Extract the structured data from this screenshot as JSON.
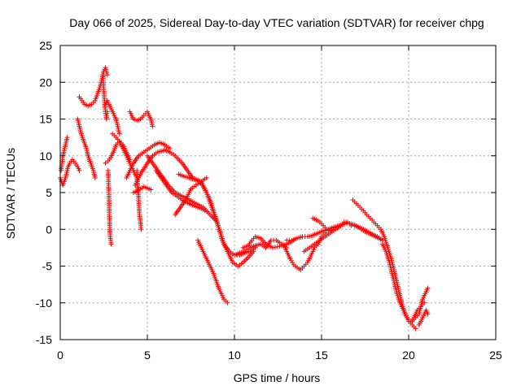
{
  "chart_data": {
    "type": "scatter",
    "title": "Day 066 of 2025, Sidereal Day-to-day VTEC variation (SDTVAR) for receiver chpg",
    "xlabel": "GPS time / hours",
    "ylabel": "SDTVAR / TECUs",
    "xlim": [
      0,
      25
    ],
    "ylim": [
      -15,
      25
    ],
    "xticks": [
      0,
      5,
      10,
      15,
      20,
      25
    ],
    "yticks": [
      -15,
      -10,
      -5,
      0,
      5,
      10,
      15,
      20,
      25
    ],
    "grid": true,
    "marker": "+",
    "color": "#ff0000",
    "series": [
      {
        "name": "s1",
        "x": [
          0.0,
          0.15,
          0.3,
          0.45,
          0.55,
          0.7,
          0.85,
          1.0,
          1.1
        ],
        "y": [
          7,
          6,
          7,
          8.5,
          9,
          9.5,
          9,
          8.5,
          8
        ]
      },
      {
        "name": "s2",
        "x": [
          0.05,
          0.1,
          0.15,
          0.2,
          0.25,
          0.3,
          0.35,
          0.4
        ],
        "y": [
          8,
          9,
          10,
          10.5,
          11,
          11.5,
          12,
          12.5
        ]
      },
      {
        "name": "s3",
        "x": [
          1.0,
          1.1,
          1.2,
          1.35,
          1.5,
          1.6,
          1.75,
          1.9,
          2.0
        ],
        "y": [
          15,
          14,
          13,
          12,
          11,
          10,
          9,
          8,
          7
        ]
      },
      {
        "name": "s4",
        "x": [
          1.1,
          1.25,
          1.4,
          1.6,
          1.8,
          2.0,
          2.15,
          2.3,
          2.4,
          2.5,
          2.6,
          2.7
        ],
        "y": [
          18,
          17.5,
          17,
          16.8,
          17,
          17.5,
          18.5,
          19.5,
          20.5,
          21.5,
          22,
          21
        ]
      },
      {
        "name": "s5",
        "x": [
          2.45,
          2.5,
          2.55,
          2.6,
          2.65,
          2.7
        ],
        "y": [
          21,
          19,
          17,
          16,
          15,
          16
        ]
      },
      {
        "name": "s6",
        "x": [
          2.6,
          2.7,
          2.8,
          2.9,
          3.0,
          3.1,
          3.2,
          3.3,
          3.4
        ],
        "y": [
          17,
          17.5,
          17,
          16.5,
          16,
          15.5,
          15,
          14,
          13
        ]
      },
      {
        "name": "s7",
        "x": [
          2.6,
          2.75,
          2.9,
          3.05,
          3.2,
          3.4,
          3.6,
          3.8,
          4.0
        ],
        "y": [
          9,
          9.3,
          9.8,
          10.5,
          11.5,
          12,
          11.5,
          10.5,
          9.5
        ]
      },
      {
        "name": "s8",
        "x": [
          2.75,
          2.78,
          2.8,
          2.82,
          2.85,
          2.87,
          2.9,
          2.92
        ],
        "y": [
          8,
          6,
          4,
          2,
          0,
          -1,
          -1.5,
          -2
        ]
      },
      {
        "name": "s9",
        "x": [
          3.0,
          3.2,
          3.4,
          3.6,
          3.8,
          4.0,
          4.2,
          4.4,
          4.5
        ],
        "y": [
          13,
          12.5,
          12,
          11,
          10,
          9,
          8,
          7,
          5
        ]
      },
      {
        "name": "s10",
        "x": [
          4.0,
          4.2,
          4.4,
          4.6,
          4.8,
          5.0,
          5.2,
          5.3
        ],
        "y": [
          16,
          15,
          14.8,
          15,
          15.5,
          16,
          15,
          14
        ]
      },
      {
        "name": "s11",
        "x": [
          4.4,
          4.45,
          4.5,
          4.55,
          4.6,
          4.65
        ],
        "y": [
          8,
          6,
          4,
          2,
          1,
          0
        ]
      },
      {
        "name": "s12",
        "x": [
          4.2,
          4.4,
          4.6,
          4.8,
          5.0,
          5.2
        ],
        "y": [
          5,
          5.2,
          5.5,
          5.8,
          5.6,
          5.4
        ]
      },
      {
        "name": "s13",
        "x": [
          3.8,
          4.0,
          4.2,
          4.5,
          4.8,
          5.1,
          5.4,
          5.7,
          6.0,
          6.3
        ],
        "y": [
          7,
          8,
          9,
          10,
          10.5,
          11,
          11.5,
          11.8,
          11.5,
          11
        ]
      },
      {
        "name": "s14",
        "x": [
          4.3,
          4.6,
          5.0,
          5.3,
          5.6,
          6.0,
          6.3,
          6.6,
          7.0,
          7.3,
          7.6,
          8.0
        ],
        "y": [
          6,
          7.5,
          9,
          10,
          10.5,
          10.8,
          10.5,
          10,
          9,
          8,
          7,
          6.5
        ]
      },
      {
        "name": "s15",
        "x": [
          5.0,
          5.3,
          5.6,
          5.9,
          6.2,
          6.6,
          7.0,
          7.4,
          7.8,
          8.2,
          8.6,
          9.0
        ],
        "y": [
          10,
          9,
          8,
          7,
          6,
          5,
          4.5,
          4,
          3.5,
          3,
          2,
          1
        ]
      },
      {
        "name": "s16",
        "x": [
          5.5,
          5.8,
          6.1,
          6.4,
          6.7,
          7.0,
          7.3,
          7.6,
          7.9,
          8.1,
          8.3
        ],
        "y": [
          8,
          7,
          6,
          5,
          4.5,
          4,
          3.6,
          3.3,
          3,
          2.8,
          2.6
        ]
      },
      {
        "name": "s17",
        "x": [
          6.6,
          6.9,
          7.2,
          7.5,
          7.8,
          8.1,
          8.4
        ],
        "y": [
          2,
          3,
          4,
          5.5,
          6,
          6.5,
          7
        ]
      },
      {
        "name": "s18",
        "x": [
          6.8,
          7.1,
          7.4,
          7.7,
          8.0,
          8.2,
          8.4,
          8.6,
          8.8,
          9.0,
          9.2,
          9.4,
          9.7,
          10.0,
          10.3,
          10.6,
          10.9,
          11.2
        ],
        "y": [
          7.5,
          7.2,
          7,
          6.8,
          6.5,
          5.8,
          5,
          4,
          2.5,
          1,
          -0.5,
          -2,
          -3,
          -3.5,
          -3.5,
          -3.2,
          -3,
          -2.5
        ]
      },
      {
        "name": "s19",
        "x": [
          7.5,
          7.8,
          8.1,
          8.4,
          8.7,
          9.0,
          9.3,
          9.6,
          9.9,
          10.2,
          10.5,
          10.8,
          11.1
        ],
        "y": [
          7,
          6.8,
          6.5,
          5,
          3,
          1,
          -1.5,
          -3,
          -4.5,
          -5,
          -4.5,
          -3.8,
          -3
        ]
      },
      {
        "name": "s20",
        "x": [
          7.9,
          8.2,
          8.5,
          8.8,
          9.1,
          9.4,
          9.6
        ],
        "y": [
          -1.5,
          -3,
          -4.5,
          -6,
          -8,
          -9.5,
          -10
        ]
      },
      {
        "name": "s21",
        "x": [
          10.0,
          10.3,
          10.6,
          10.9,
          11.2,
          11.5,
          11.8,
          12.1,
          12.4,
          12.7,
          13.0
        ],
        "y": [
          -3.5,
          -3.2,
          -3,
          -2.5,
          -2.2,
          -2,
          -2.5,
          -1.5,
          -1.5,
          -2,
          -2.5
        ]
      },
      {
        "name": "s22",
        "x": [
          10.5,
          10.8,
          11.0,
          11.2,
          11.5,
          11.8,
          12.2,
          12.6,
          13.0,
          13.4
        ],
        "y": [
          -2.5,
          -2.2,
          -1.5,
          -1,
          -1.2,
          -2,
          -2.5,
          -2.3,
          -2,
          -1.5
        ]
      },
      {
        "name": "s23",
        "x": [
          12.8,
          13.0,
          13.2,
          13.4,
          13.6,
          13.8,
          14.0,
          14.2,
          14.4,
          14.6,
          14.8,
          15.0,
          15.2
        ],
        "y": [
          -2,
          -3,
          -4,
          -4.8,
          -5.2,
          -5.5,
          -5,
          -4.5,
          -3.5,
          -2.5,
          -2,
          -1,
          -0.5
        ]
      },
      {
        "name": "s24",
        "x": [
          13.0,
          13.3,
          13.6,
          13.9,
          14.2,
          14.5,
          14.8,
          15.1,
          15.4,
          15.7,
          16.0,
          16.3,
          16.6,
          17.0,
          17.4,
          17.8,
          18.2,
          18.5
        ],
        "y": [
          -1.5,
          -1.5,
          -1.2,
          -1,
          -1,
          -0.8,
          -0.5,
          -0.2,
          0,
          0.3,
          0.5,
          0.7,
          0.8,
          0.5,
          0,
          -0.5,
          -1,
          -1.5
        ]
      },
      {
        "name": "s25",
        "x": [
          14.0,
          14.3,
          14.6,
          14.9,
          15.2,
          15.5,
          15.8,
          16.1,
          16.4
        ],
        "y": [
          -3,
          -2.5,
          -2,
          -1.5,
          -1,
          -0.5,
          0,
          0.5,
          1
        ]
      },
      {
        "name": "s26",
        "x": [
          14.5,
          14.7,
          14.9,
          15.1,
          15.3,
          15.5,
          15.7,
          15.9,
          16.1,
          16.3,
          16.5,
          16.7,
          16.9,
          17.1,
          17.3,
          17.5,
          17.7,
          17.9,
          18.1,
          18.3,
          18.5
        ],
        "y": [
          1.5,
          1.3,
          1,
          0.5,
          0,
          -0.2,
          0,
          0.3,
          0.5,
          1,
          1,
          0.5,
          0.5,
          0.3,
          0,
          -0.3,
          -0.5,
          -0.8,
          -1,
          -1.2,
          -1.5
        ]
      },
      {
        "name": "s27",
        "x": [
          16.8,
          17.0,
          17.2,
          17.4,
          17.6,
          17.8,
          18.0,
          18.2,
          18.4,
          18.6,
          18.8,
          19.0,
          19.2,
          19.4,
          19.6,
          19.8,
          20.0,
          20.2,
          20.4
        ],
        "y": [
          4,
          3.5,
          3,
          2.5,
          2,
          1.5,
          1,
          0.5,
          0,
          -1,
          -2.5,
          -4,
          -6,
          -8,
          -10,
          -11.5,
          -12.5,
          -13,
          -13.5
        ]
      },
      {
        "name": "s28",
        "x": [
          18.5,
          18.7,
          18.9,
          19.1,
          19.3,
          19.5,
          19.7,
          19.9,
          20.1,
          20.3,
          20.5,
          20.7,
          20.9
        ],
        "y": [
          -2,
          -3,
          -4.5,
          -6.5,
          -8.5,
          -10,
          -11,
          -12,
          -12.5,
          -12,
          -11,
          -10.5,
          -10
        ]
      },
      {
        "name": "s29",
        "x": [
          20.2,
          20.4,
          20.6,
          20.7,
          20.8,
          20.9,
          21.0,
          21.1
        ],
        "y": [
          -12.5,
          -12,
          -11.5,
          -10.5,
          -9.5,
          -9,
          -8.5,
          -8
        ]
      },
      {
        "name": "s30",
        "x": [
          20.6,
          20.7,
          20.8,
          20.9,
          21.0,
          21.1
        ],
        "y": [
          -13,
          -12.5,
          -12,
          -11.5,
          -11,
          -11.5
        ]
      }
    ]
  }
}
